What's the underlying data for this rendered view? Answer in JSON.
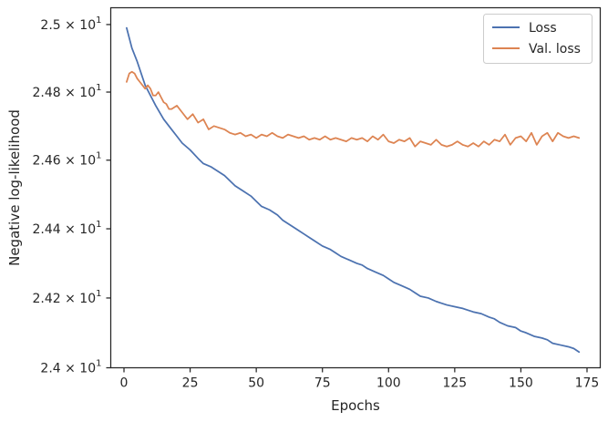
{
  "chart_data": {
    "type": "line",
    "xlabel": "Epochs",
    "ylabel": "Negative log-likelihood",
    "xlim": [
      -5,
      180
    ],
    "ylim": [
      24.0,
      25.05
    ],
    "yscale": "log",
    "grid": false,
    "legend_position": "top-right",
    "x_ticks": [
      0,
      25,
      50,
      75,
      100,
      125,
      150,
      175
    ],
    "y_ticks": [
      {
        "value": 24.0,
        "mantissa": "2.4",
        "base": "10",
        "exp": "1"
      },
      {
        "value": 24.2,
        "mantissa": "2.42",
        "base": "10",
        "exp": "1"
      },
      {
        "value": 24.4,
        "mantissa": "2.44",
        "base": "10",
        "exp": "1"
      },
      {
        "value": 24.6,
        "mantissa": "2.46",
        "base": "10",
        "exp": "1"
      },
      {
        "value": 24.8,
        "mantissa": "2.48",
        "base": "10",
        "exp": "1"
      },
      {
        "value": 25.0,
        "mantissa": "2.5",
        "base": "10",
        "exp": "1"
      }
    ],
    "series": [
      {
        "name": "Loss",
        "color": "#4c72b0",
        "x": [
          1,
          3,
          5,
          8,
          10,
          12,
          15,
          18,
          20,
          22,
          25,
          28,
          30,
          33,
          35,
          38,
          40,
          42,
          45,
          48,
          50,
          52,
          55,
          58,
          60,
          62,
          65,
          68,
          70,
          72,
          75,
          78,
          80,
          82,
          85,
          88,
          90,
          92,
          95,
          98,
          100,
          102,
          105,
          108,
          110,
          112,
          115,
          118,
          120,
          122,
          125,
          128,
          130,
          132,
          135,
          138,
          140,
          142,
          145,
          148,
          150,
          152,
          155,
          158,
          160,
          162,
          165,
          168,
          170,
          172
        ],
        "y": [
          24.99,
          24.93,
          24.89,
          24.82,
          24.79,
          24.76,
          24.72,
          24.69,
          24.67,
          24.65,
          24.63,
          24.605,
          24.59,
          24.58,
          24.57,
          24.555,
          24.54,
          24.525,
          24.51,
          24.495,
          24.48,
          24.465,
          24.455,
          24.44,
          24.425,
          24.415,
          24.4,
          24.385,
          24.375,
          24.365,
          24.35,
          24.34,
          24.33,
          24.32,
          24.31,
          24.3,
          24.295,
          24.285,
          24.275,
          24.265,
          24.255,
          24.245,
          24.235,
          24.225,
          24.215,
          24.205,
          24.2,
          24.19,
          24.185,
          24.18,
          24.175,
          24.17,
          24.165,
          24.16,
          24.155,
          24.145,
          24.14,
          24.13,
          24.12,
          24.115,
          24.105,
          24.1,
          24.09,
          24.085,
          24.08,
          24.07,
          24.065,
          24.06,
          24.055,
          24.045
        ]
      },
      {
        "name": "Val. loss",
        "color": "#dd8452",
        "x": [
          1,
          2,
          3,
          4,
          5,
          6,
          7,
          8,
          9,
          10,
          11,
          12,
          13,
          14,
          15,
          16,
          17,
          18,
          19,
          20,
          22,
          24,
          26,
          28,
          30,
          32,
          34,
          36,
          38,
          40,
          42,
          44,
          46,
          48,
          50,
          52,
          54,
          56,
          58,
          60,
          62,
          64,
          66,
          68,
          70,
          72,
          74,
          76,
          78,
          80,
          82,
          84,
          86,
          88,
          90,
          92,
          94,
          96,
          98,
          100,
          102,
          104,
          106,
          108,
          110,
          112,
          114,
          116,
          118,
          120,
          122,
          124,
          126,
          128,
          130,
          132,
          134,
          136,
          138,
          140,
          142,
          144,
          146,
          148,
          150,
          152,
          154,
          156,
          158,
          160,
          162,
          164,
          166,
          168,
          170,
          172
        ],
        "y": [
          24.83,
          24.855,
          24.86,
          24.855,
          24.84,
          24.83,
          24.82,
          24.81,
          24.82,
          24.81,
          24.79,
          24.79,
          24.8,
          24.785,
          24.77,
          24.765,
          24.75,
          24.75,
          24.755,
          24.76,
          24.74,
          24.72,
          24.735,
          24.71,
          24.72,
          24.69,
          24.7,
          24.695,
          24.69,
          24.68,
          24.675,
          24.68,
          24.67,
          24.675,
          24.665,
          24.675,
          24.67,
          24.68,
          24.67,
          24.665,
          24.675,
          24.67,
          24.665,
          24.67,
          24.66,
          24.665,
          24.66,
          24.67,
          24.66,
          24.665,
          24.66,
          24.655,
          24.665,
          24.66,
          24.665,
          24.655,
          24.67,
          24.66,
          24.675,
          24.655,
          24.65,
          24.66,
          24.655,
          24.665,
          24.64,
          24.655,
          24.65,
          24.645,
          24.66,
          24.645,
          24.64,
          24.645,
          24.655,
          24.645,
          24.64,
          24.65,
          24.64,
          24.655,
          24.645,
          24.66,
          24.655,
          24.675,
          24.645,
          24.665,
          24.67,
          24.655,
          24.68,
          24.645,
          24.67,
          24.68,
          24.655,
          24.68,
          24.67,
          24.665,
          24.67,
          24.665
        ]
      }
    ]
  }
}
